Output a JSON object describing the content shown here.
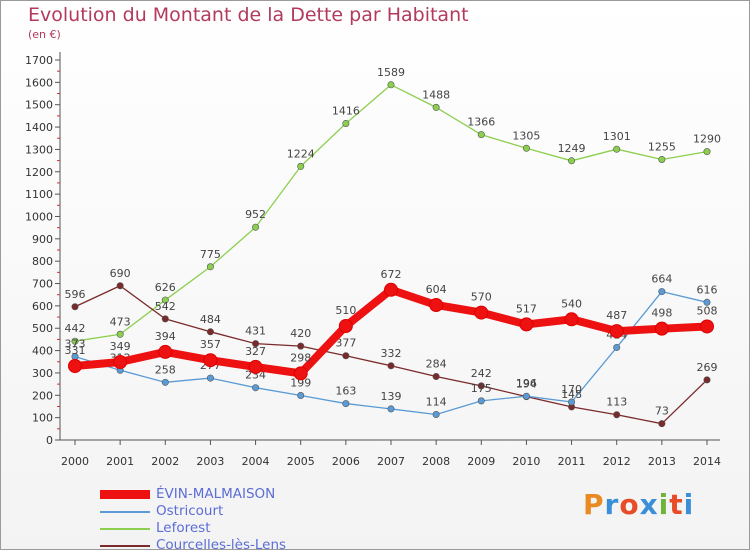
{
  "header": {
    "title": "Evolution du Montant de la Dette par Habitant",
    "subtitle": "(en €)"
  },
  "logo": {
    "text": "Proxiti",
    "colors": [
      "#e98a23",
      "#3a8fd8",
      "#e84b27",
      "#3a8fd8",
      "#6fb33a",
      "#e84b27",
      "#3a8fd8"
    ]
  },
  "chart_data": {
    "type": "line",
    "title": "Evolution du Montant de la Dette par Habitant",
    "subtitle": "(en €)",
    "xlabel": "",
    "ylabel": "",
    "x": [
      "2000",
      "2001",
      "2002",
      "2003",
      "2004",
      "2005",
      "2006",
      "2007",
      "2008",
      "2009",
      "2010",
      "2011",
      "2012",
      "2013",
      "2014"
    ],
    "ylim": [
      0,
      1700
    ],
    "yticks": [
      0,
      100,
      200,
      300,
      400,
      500,
      600,
      700,
      800,
      900,
      1000,
      1100,
      1200,
      1300,
      1400,
      1500,
      1600,
      1700
    ],
    "grid": false,
    "legend_position": "bottom-left",
    "series": [
      {
        "name": "Leforest",
        "color": "#8ccf4f",
        "values": [
          442,
          473,
          626,
          775,
          952,
          1224,
          1416,
          1589,
          1488,
          1366,
          1305,
          1249,
          1301,
          1255,
          1290
        ]
      },
      {
        "name": "Courcelles-lès-Lens",
        "color": "#7a2a2a",
        "values": [
          596,
          690,
          542,
          484,
          431,
          420,
          377,
          332,
          284,
          242,
          194,
          148,
          113,
          73,
          269
        ]
      },
      {
        "name": "Ostricourt",
        "color": "#5a9bd5",
        "values": [
          373,
          312,
          258,
          277,
          234,
          199,
          163,
          139,
          114,
          175,
          196,
          170,
          414,
          664,
          616
        ]
      },
      {
        "name": "ÉVIN-MALMAISON",
        "color": "#ee1111",
        "values": [
          331,
          349,
          394,
          357,
          327,
          298,
          510,
          672,
          604,
          570,
          517,
          540,
          487,
          498,
          508
        ]
      }
    ],
    "legend": [
      "ÉVIN-MALMAISON",
      "Ostricourt",
      "Leforest",
      "Courcelles-lès-Lens"
    ]
  }
}
